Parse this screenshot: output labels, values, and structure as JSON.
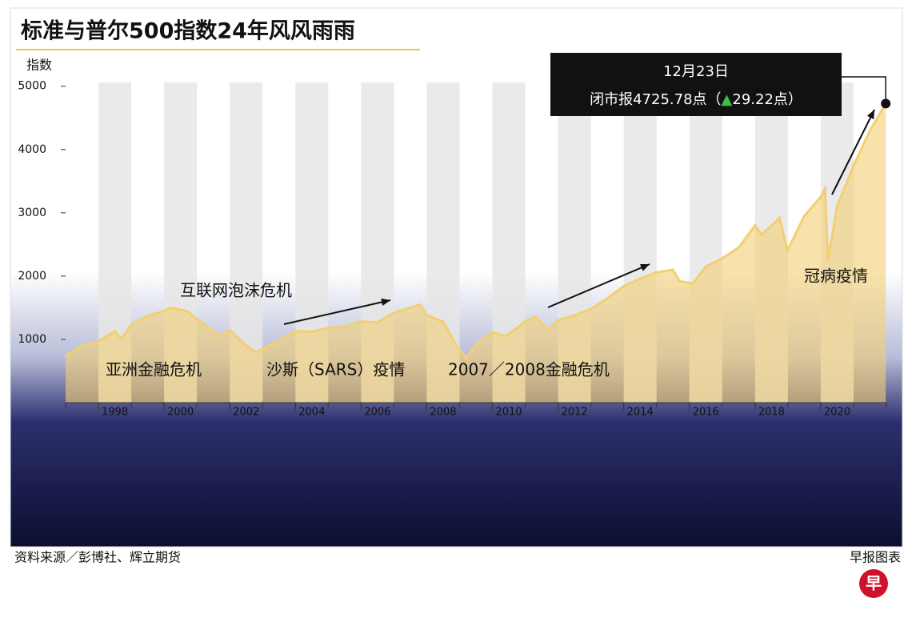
{
  "chart_data": {
    "type": "area",
    "title": "标准与普尔500指数24年风风雨雨",
    "y_label": "指数",
    "x": [
      1997.0,
      1997.5,
      1998.0,
      1998.5,
      1998.7,
      1999.0,
      1999.5,
      2000.0,
      2000.2,
      2000.7,
      2001.0,
      2001.7,
      2002.0,
      2002.5,
      2002.8,
      2003.0,
      2003.5,
      2004.0,
      2004.5,
      2005.0,
      2005.5,
      2006.0,
      2006.5,
      2007.0,
      2007.5,
      2007.8,
      2008.0,
      2008.5,
      2008.9,
      2009.2,
      2009.5,
      2010.0,
      2010.4,
      2011.0,
      2011.3,
      2011.7,
      2012.0,
      2012.5,
      2013.0,
      2013.5,
      2014.0,
      2014.5,
      2015.0,
      2015.5,
      2015.7,
      2016.1,
      2016.5,
      2017.0,
      2017.5,
      2018.0,
      2018.2,
      2018.75,
      2018.98,
      2019.5,
      2020.0,
      2020.13,
      2020.22,
      2020.5,
      2021.0,
      2021.5,
      2021.98
    ],
    "values": [
      740,
      900,
      970,
      1130,
      1000,
      1230,
      1370,
      1450,
      1500,
      1450,
      1320,
      1050,
      1150,
      900,
      800,
      850,
      980,
      1130,
      1120,
      1180,
      1200,
      1280,
      1270,
      1420,
      1500,
      1550,
      1380,
      1280,
      900,
      700,
      920,
      1115,
      1050,
      1280,
      1360,
      1150,
      1300,
      1380,
      1480,
      1650,
      1840,
      1960,
      2060,
      2100,
      1920,
      1880,
      2150,
      2280,
      2450,
      2800,
      2650,
      2920,
      2400,
      2950,
      3250,
      3380,
      2240,
      3100,
      3750,
      4300,
      4725.78
    ],
    "color": "#f3cf73",
    "xlim": [
      1997,
      2022
    ],
    "xticks": [
      1998,
      2000,
      2002,
      2004,
      2006,
      2008,
      2010,
      2012,
      2014,
      2016,
      2018,
      2020
    ],
    "ylim": [
      0,
      5060
    ],
    "yticks": [
      1000,
      2000,
      3000,
      4000,
      5000
    ],
    "annotations": [
      "互联网泡沫危机",
      "亚洲金融危机",
      "沙斯（SARS）疫情",
      "2007／2008金融危机",
      "冠病疫情"
    ],
    "callout_date": "12月23日",
    "callout_text": [
      "闭市报4725.78点（",
      "▲",
      "29.22点",
      "）"
    ],
    "source": "资料来源／彭博社、辉立期货",
    "credit": "早报图表",
    "logo": "早"
  }
}
